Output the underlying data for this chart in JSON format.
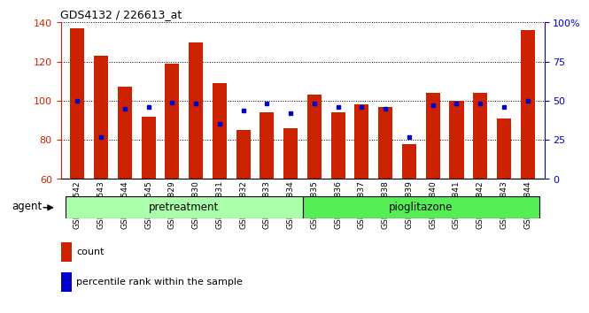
{
  "title": "GDS4132 / 226613_at",
  "samples": [
    "GSM201542",
    "GSM201543",
    "GSM201544",
    "GSM201545",
    "GSM201829",
    "GSM201830",
    "GSM201831",
    "GSM201832",
    "GSM201833",
    "GSM201834",
    "GSM201835",
    "GSM201836",
    "GSM201837",
    "GSM201838",
    "GSM201839",
    "GSM201840",
    "GSM201841",
    "GSM201842",
    "GSM201843",
    "GSM201844"
  ],
  "counts": [
    137,
    123,
    107,
    92,
    119,
    130,
    109,
    85,
    94,
    86,
    103,
    94,
    98,
    97,
    78,
    104,
    100,
    104,
    91,
    136
  ],
  "percentile_ranks": [
    50,
    27,
    45,
    46,
    49,
    48,
    35,
    44,
    48,
    42,
    48,
    46,
    46,
    45,
    27,
    47,
    48,
    48,
    46,
    50
  ],
  "ylim_left": [
    60,
    140
  ],
  "ylim_right": [
    0,
    100
  ],
  "yticks_left": [
    60,
    80,
    100,
    120,
    140
  ],
  "yticks_right": [
    0,
    25,
    50,
    75,
    100
  ],
  "bar_color": "#cc2200",
  "dot_color": "#0000cc",
  "bar_width": 0.6,
  "pretreatment_color": "#aaffaa",
  "pioglitazone_color": "#55ee55",
  "agent_label": "agent",
  "pretreatment_label": "pretreatment",
  "pioglitazone_label": "pioglitazone",
  "legend_count": "count",
  "legend_percentile": "percentile rank within the sample",
  "tick_color_left": "#cc2200",
  "tick_color_right": "#0000cc",
  "title_text": "GDS4132 / 226613_at"
}
